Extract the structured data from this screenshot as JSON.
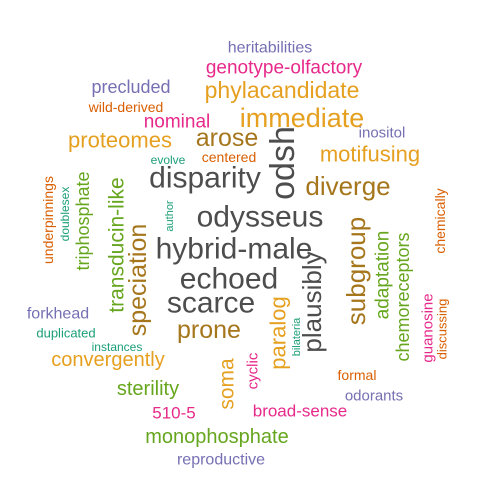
{
  "palette": {
    "gray": "#4d4d4d",
    "gold": "#e6a020",
    "brown": "#a6761d",
    "green": "#66a61e",
    "teal": "#1b9e77",
    "orange": "#d95f02",
    "purple": "#7570b3",
    "magenta": "#e7298a"
  },
  "words": [
    {
      "text": "heritabilities",
      "color": "purple"
    },
    {
      "text": "genotype-olfactory",
      "color": "magenta"
    },
    {
      "text": "precluded",
      "color": "purple"
    },
    {
      "text": "phylacandidate",
      "color": "gold"
    },
    {
      "text": "wild-derived",
      "color": "orange"
    },
    {
      "text": "immediate",
      "color": "gold"
    },
    {
      "text": "nominal",
      "color": "magenta"
    },
    {
      "text": "inositol",
      "color": "purple"
    },
    {
      "text": "proteomes",
      "color": "gold"
    },
    {
      "text": "arose",
      "color": "brown"
    },
    {
      "text": "odsh",
      "color": "gray"
    },
    {
      "text": "motifusing",
      "color": "gold"
    },
    {
      "text": "evolve",
      "color": "teal"
    },
    {
      "text": "centered",
      "color": "orange"
    },
    {
      "text": "disparity",
      "color": "gray"
    },
    {
      "text": "diverge",
      "color": "brown"
    },
    {
      "text": "underpinnings",
      "color": "orange"
    },
    {
      "text": "doublesex",
      "color": "teal"
    },
    {
      "text": "triphosphate",
      "color": "green"
    },
    {
      "text": "transducin-like",
      "color": "green"
    },
    {
      "text": "author",
      "color": "teal"
    },
    {
      "text": "odysseus",
      "color": "gray"
    },
    {
      "text": "chemically",
      "color": "orange"
    },
    {
      "text": "subgroup",
      "color": "brown"
    },
    {
      "text": "adaptation",
      "color": "green"
    },
    {
      "text": "chemoreceptors",
      "color": "green"
    },
    {
      "text": "hybrid-male",
      "color": "gray"
    },
    {
      "text": "speciation",
      "color": "brown"
    },
    {
      "text": "echoed",
      "color": "gray"
    },
    {
      "text": "plausibly",
      "color": "gray"
    },
    {
      "text": "guanosine",
      "color": "magenta"
    },
    {
      "text": "discussing",
      "color": "orange"
    },
    {
      "text": "scarce",
      "color": "gray"
    },
    {
      "text": "paralog",
      "color": "gold"
    },
    {
      "text": "forkhead",
      "color": "purple"
    },
    {
      "text": "duplicated",
      "color": "teal"
    },
    {
      "text": "prone",
      "color": "brown"
    },
    {
      "text": "bilateria",
      "color": "teal"
    },
    {
      "text": "instances",
      "color": "teal"
    },
    {
      "text": "convergently",
      "color": "gold"
    },
    {
      "text": "soma",
      "color": "gold"
    },
    {
      "text": "cyclic",
      "color": "magenta"
    },
    {
      "text": "formal",
      "color": "orange"
    },
    {
      "text": "sterility",
      "color": "green"
    },
    {
      "text": "odorants",
      "color": "purple"
    },
    {
      "text": "510-5",
      "color": "magenta"
    },
    {
      "text": "broad-sense",
      "color": "magenta"
    },
    {
      "text": "monophosphate",
      "color": "green"
    },
    {
      "text": "reproductive",
      "color": "purple"
    }
  ]
}
